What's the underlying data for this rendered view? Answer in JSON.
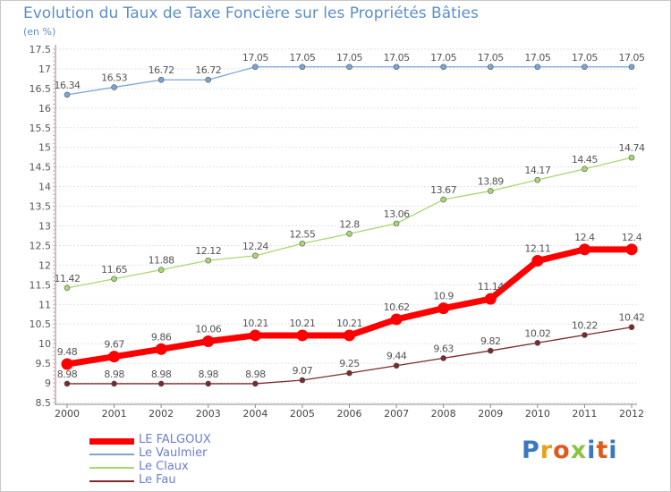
{
  "header": {
    "title": "Evolution du Taux de Taxe Foncière sur les Propriétés Bâties",
    "unit": "(en %)"
  },
  "brand": {
    "text": "Proxiti",
    "letter_colors": [
      "#3b78c2",
      "#e8a020",
      "#e05a1a",
      "#8bc53f",
      "#3b78c2",
      "#e05a1a",
      "#3b78c2"
    ]
  },
  "chart_data": {
    "type": "line",
    "title": "Evolution du Taux de Taxe Foncière sur les Propriétés Bâties",
    "xlabel": "",
    "ylabel": "(en %)",
    "x": [
      "2000",
      "2001",
      "2002",
      "2003",
      "2004",
      "2005",
      "2006",
      "2007",
      "2008",
      "2009",
      "2010",
      "2011",
      "2012"
    ],
    "ylim": [
      8.5,
      17.5
    ],
    "yticks": [
      "8.5",
      "9",
      "9.5",
      "10",
      "10.5",
      "11",
      "11.5",
      "12",
      "12.5",
      "13",
      "13.5",
      "14",
      "14.5",
      "15",
      "15.5",
      "16",
      "16.5",
      "17",
      "17.5"
    ],
    "grid": "horizontal dotted",
    "legend_position": "bottom-left",
    "series": [
      {
        "name": "LE FALGOUX",
        "color": "#ff0000",
        "values": [
          9.48,
          9.67,
          9.86,
          10.06,
          10.21,
          10.21,
          10.21,
          10.62,
          10.9,
          11.14,
          12.11,
          12.4,
          12.4
        ],
        "labels": [
          "9.48",
          "9.67",
          "9.86",
          "10.06",
          "10.21",
          "10.21",
          "10.21",
          "10.62",
          "10.9",
          "11.14",
          "12.11",
          "12.4",
          "12.4"
        ],
        "emphasis": true
      },
      {
        "name": "Le Vaulmier",
        "color": "#7aa6d6",
        "values": [
          16.34,
          16.53,
          16.72,
          16.72,
          17.05,
          17.05,
          17.05,
          17.05,
          17.05,
          17.05,
          17.05,
          17.05,
          17.05
        ],
        "labels": [
          "16.34",
          "16.53",
          "16.72",
          "16.72",
          "17.05",
          "17.05",
          "17.05",
          "17.05",
          "17.05",
          "17.05",
          "17.05",
          "17.05",
          "17.05"
        ],
        "emphasis": false
      },
      {
        "name": "Le Claux",
        "color": "#a8d870",
        "values": [
          11.42,
          11.65,
          11.88,
          12.12,
          12.24,
          12.55,
          12.8,
          13.06,
          13.67,
          13.89,
          14.17,
          14.45,
          14.74
        ],
        "labels": [
          "11.42",
          "11.65",
          "11.88",
          "12.12",
          "12.24",
          "12.55",
          "12.8",
          "13.06",
          "13.67",
          "13.89",
          "14.17",
          "14.45",
          "14.74"
        ],
        "emphasis": false
      },
      {
        "name": "Le Fau",
        "color": "#7a2a2a",
        "values": [
          8.98,
          8.98,
          8.98,
          8.98,
          8.98,
          9.07,
          9.25,
          9.44,
          9.63,
          9.82,
          10.02,
          10.22,
          10.42
        ],
        "labels": [
          "8.98",
          "8.98",
          "8.98",
          "8.98",
          "8.98",
          "9.07",
          "9.25",
          "9.44",
          "9.63",
          "9.82",
          "10.02",
          "10.22",
          "10.42"
        ],
        "emphasis": false
      }
    ]
  }
}
